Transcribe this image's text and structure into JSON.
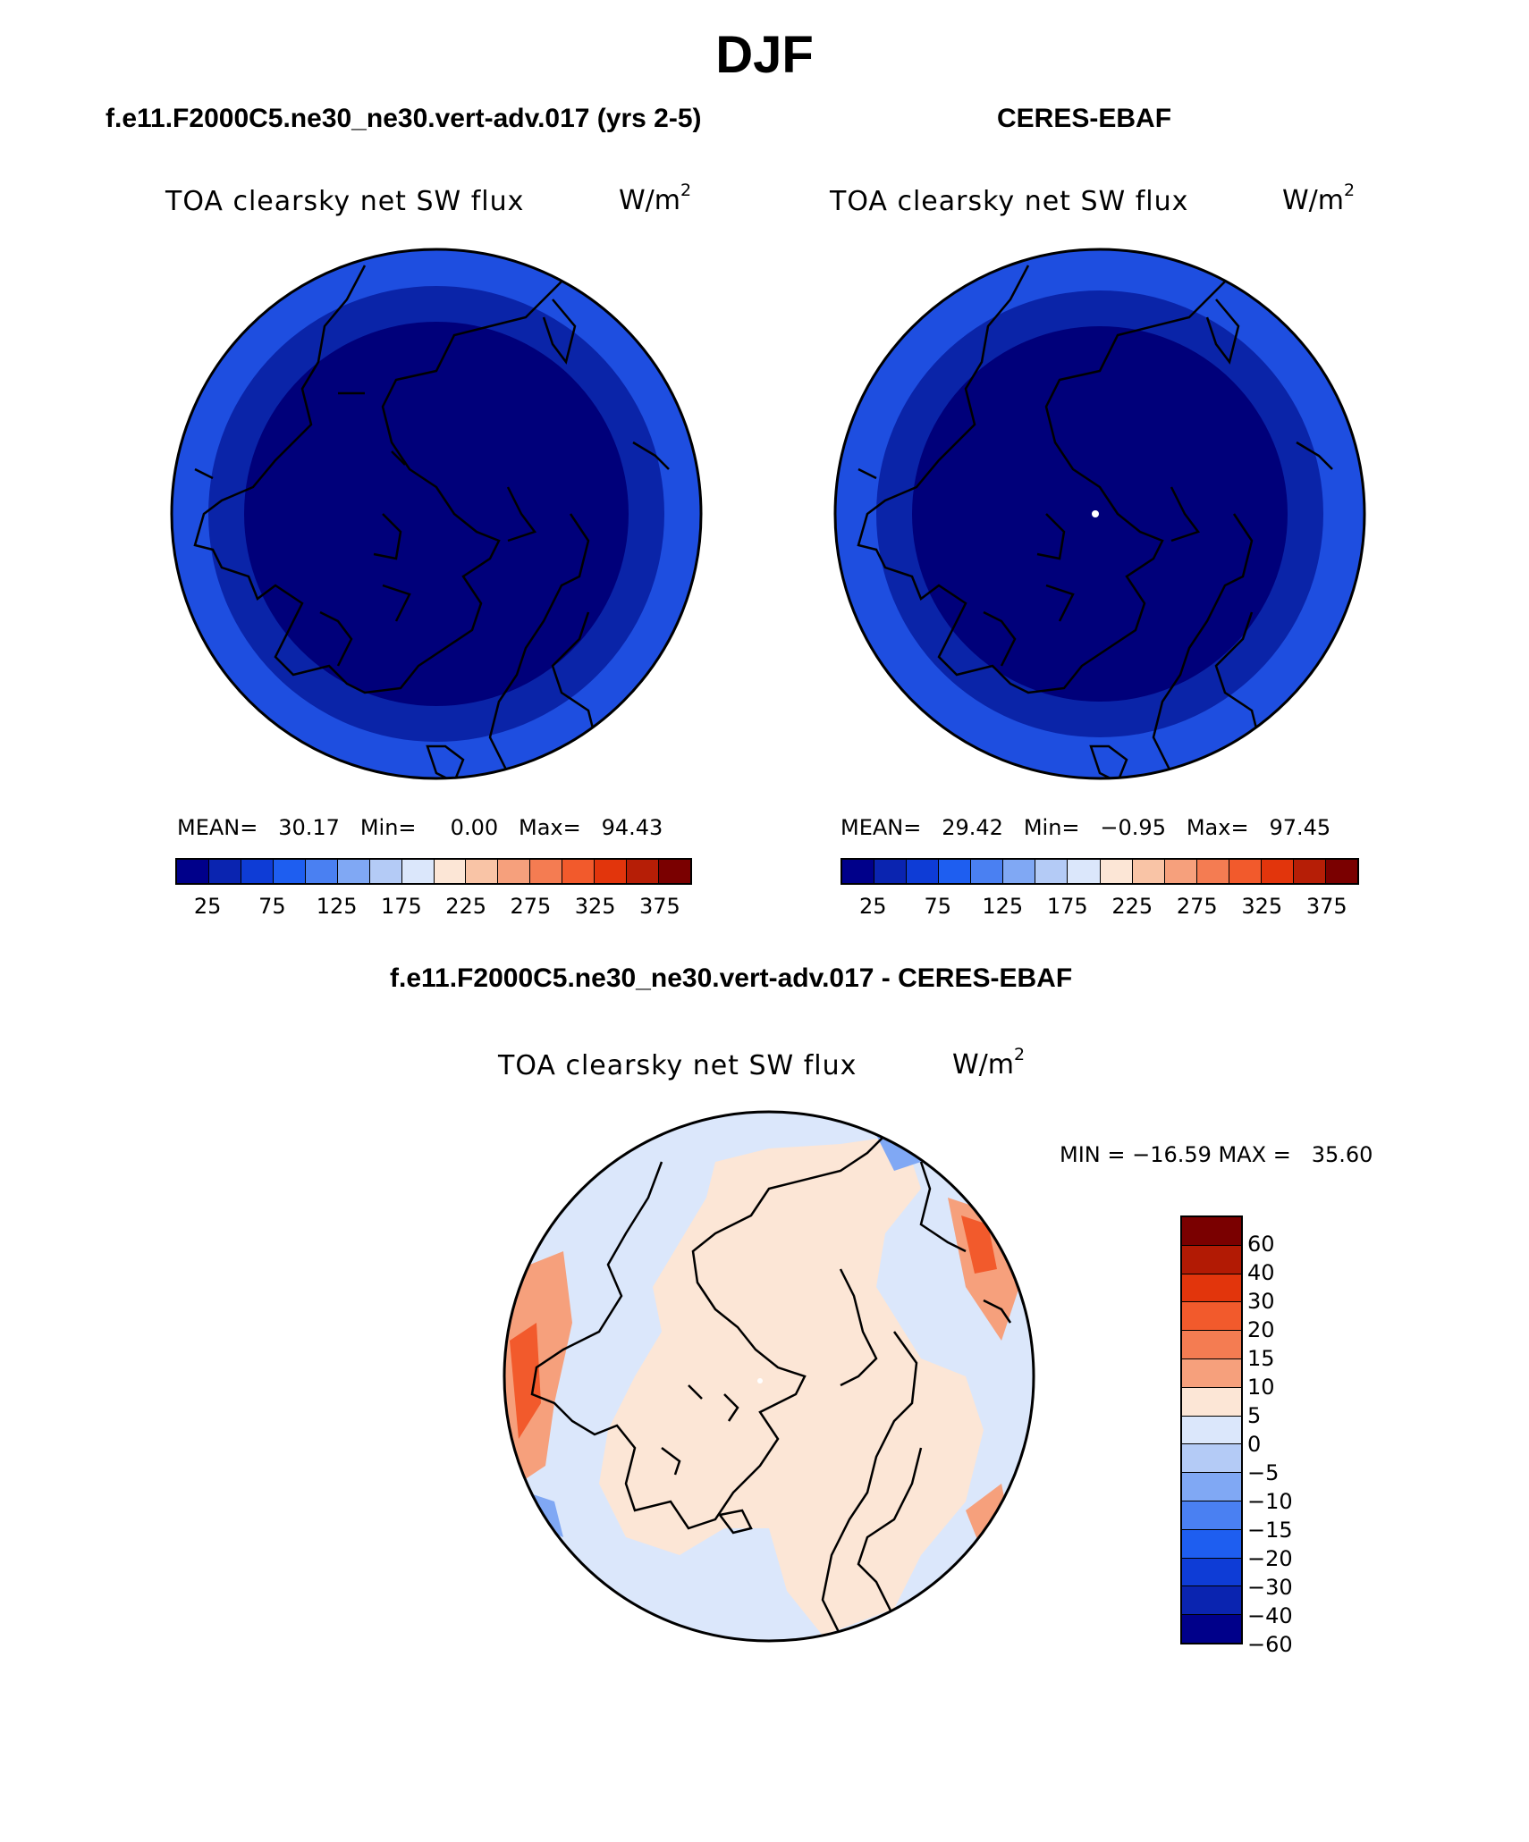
{
  "figure": {
    "season": "DJF"
  },
  "panels": [
    {
      "heading": "f.e11.F2000C5.ne30_ne30.vert-adv.017 (yrs 2-5)",
      "variable": "TOA clearsky net SW flux",
      "units_base": "W/m",
      "units_exp": "2",
      "stats": "MEAN=   30.17   Min=     0.00   Max=   94.43"
    },
    {
      "heading": "CERES-EBAF",
      "variable": "TOA clearsky net SW flux",
      "units_base": "W/m",
      "units_exp": "2",
      "stats": "MEAN=   29.42   Min=   −0.95   Max=   97.45"
    },
    {
      "heading": "f.e11.F2000C5.ne30_ne30.vert-adv.017 - CERES-EBAF",
      "variable": "TOA clearsky net SW flux",
      "units_base": "W/m",
      "units_exp": "2",
      "stats": "MIN = −16.59 MAX =   35.60"
    }
  ],
  "abs_colorbar": {
    "colors": [
      "#00008a",
      "#0a24b0",
      "#0e3cd6",
      "#1e5ef0",
      "#4a80f2",
      "#80a8f4",
      "#b4cbf6",
      "#dbe7fb",
      "#fce6d6",
      "#f9c4a6",
      "#f6a07c",
      "#f47c52",
      "#f25a2c",
      "#e2350c",
      "#b61e06",
      "#7a0000"
    ],
    "labels": [
      "25",
      "75",
      "125",
      "175",
      "225",
      "275",
      "325",
      "375"
    ]
  },
  "diff_colorbar": {
    "colors": [
      "#7a0000",
      "#b21a04",
      "#e2350c",
      "#f25a2c",
      "#f47c52",
      "#f6a07c",
      "#fce6d6",
      "#dbe7fb",
      "#b4cbf6",
      "#80a8f4",
      "#4a80f2",
      "#1e5ef0",
      "#0e3cd6",
      "#0a24b0",
      "#00008a"
    ],
    "labels": [
      "60",
      "40",
      "30",
      "20",
      "15",
      "10",
      "5",
      "0",
      "−5",
      "−10",
      "−15",
      "−20",
      "−30",
      "−40",
      "−60"
    ]
  },
  "map_colors": {
    "abs_inner": "#00007a",
    "abs_mid": "#0a24a8",
    "abs_outer": "#1e4ee0",
    "diff_land": "#fce6d6",
    "diff_ocean": "#dbe7fb",
    "diff_warm": "#f6a07c",
    "diff_hot": "#f25a2c",
    "diff_cool": "#80a8f4"
  }
}
